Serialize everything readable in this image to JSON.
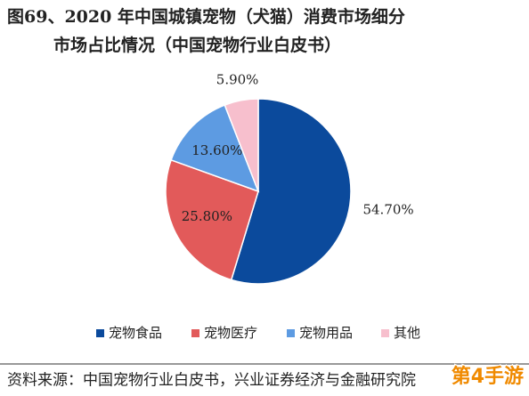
{
  "chart_data": {
    "type": "pie",
    "title": "图69、2020 年中国城镇宠物（犬猫）消费市场细分",
    "subtitle": "市场占比情况（中国宠物行业白皮书）",
    "categories": [
      "宠物食品",
      "宠物医疗",
      "宠物用品",
      "其他"
    ],
    "values": [
      54.7,
      25.8,
      13.6,
      5.9
    ],
    "value_labels": [
      "54.70%",
      "25.80%",
      "13.60%",
      "5.90%"
    ],
    "colors": [
      "#0b4a9c",
      "#e25a5a",
      "#5d9be2",
      "#f7bfcd"
    ],
    "source": "资料来源：中国宠物行业白皮书，兴业证券经济与金融研究院",
    "watermark": "第4手游"
  }
}
